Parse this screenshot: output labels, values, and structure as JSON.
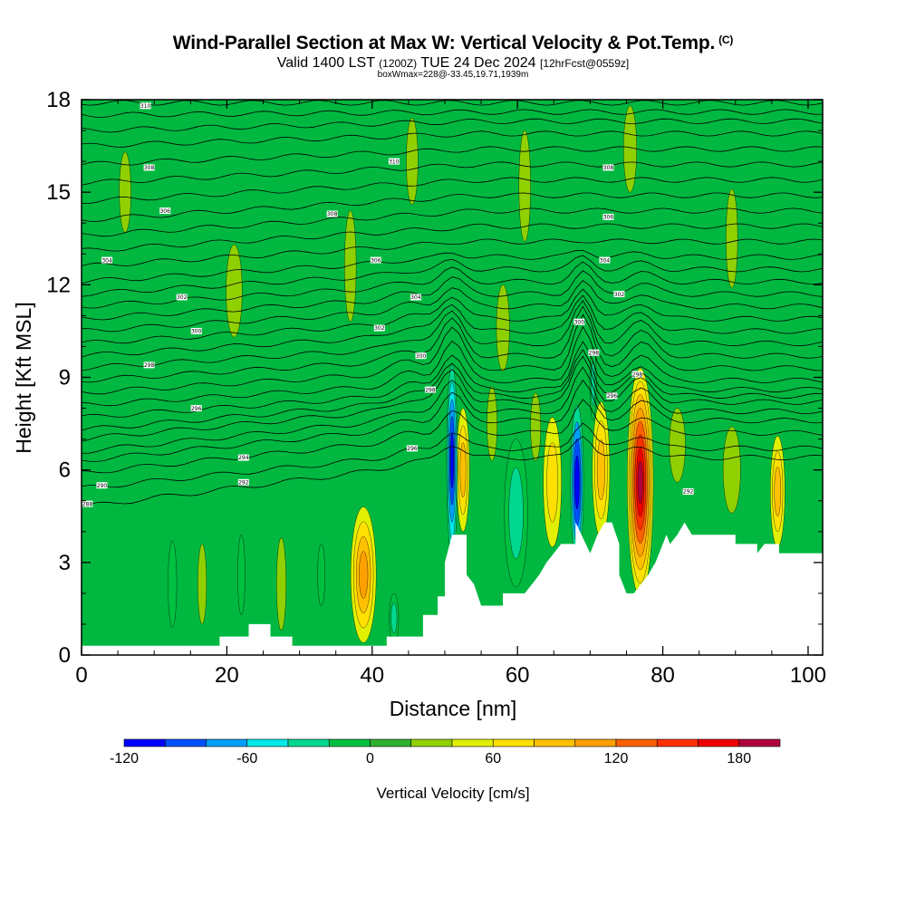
{
  "header": {
    "title": "Wind-Parallel Section at Max W: Vertical Velocity & Pot.Temp.",
    "title_mark": "(C)",
    "subtitle_a": "Valid 1400 LST",
    "subtitle_b": "(1200Z)",
    "subtitle_c": "TUE 24 Dec 2024",
    "subtitle_d": "[12hrFcst@0559z]",
    "box_note": "boxWmax=228@-33.45,19.71,1939m"
  },
  "chart_data": {
    "type": "heatmap",
    "xlabel": "Distance [nm]",
    "ylabel": "Height [Kft MSL]",
    "xlim": [
      0,
      102
    ],
    "ylim": [
      0,
      18
    ],
    "x_ticks": [
      0,
      20,
      40,
      60,
      80,
      100
    ],
    "y_ticks": [
      0,
      3,
      6,
      9,
      12,
      15,
      18
    ],
    "colorbar": {
      "label": "Vertical Velocity [cm/s]",
      "levels": [
        -120,
        -100,
        -80,
        -60,
        -40,
        -20,
        0,
        20,
        40,
        60,
        80,
        100,
        120,
        140,
        160,
        180,
        200
      ],
      "tick_values": [
        -120,
        -60,
        0,
        60,
        120,
        180
      ],
      "tick_labels": [
        "-120",
        "-60",
        "0",
        "60",
        "120",
        "180"
      ],
      "colors": [
        "#0000ff",
        "#0050ff",
        "#00a0ff",
        "#00e8e8",
        "#00d890",
        "#00c040",
        "#30b030",
        "#90d000",
        "#e0f000",
        "#ffe000",
        "#ffc000",
        "#ffa000",
        "#ff6000",
        "#ff3000",
        "#f00000",
        "#b00040"
      ],
      "background": "#00b840"
    },
    "terrain_profile": [
      [
        0,
        0.3
      ],
      [
        19,
        0.3
      ],
      [
        19,
        0.6
      ],
      [
        23,
        0.6
      ],
      [
        23,
        1.0
      ],
      [
        26,
        1.0
      ],
      [
        26,
        0.6
      ],
      [
        29,
        0.6
      ],
      [
        29,
        0.3
      ],
      [
        42,
        0.3
      ],
      [
        42,
        0.6
      ],
      [
        47,
        0.6
      ],
      [
        47,
        1.3
      ],
      [
        49,
        1.3
      ],
      [
        49,
        1.9
      ],
      [
        50,
        1.9
      ],
      [
        50,
        3.0
      ],
      [
        51,
        3.9
      ],
      [
        53,
        3.9
      ],
      [
        53,
        2.6
      ],
      [
        54,
        2.3
      ],
      [
        55,
        1.6
      ],
      [
        58,
        1.6
      ],
      [
        58,
        2.0
      ],
      [
        61,
        2.0
      ],
      [
        62,
        2.3
      ],
      [
        63,
        2.6
      ],
      [
        64,
        3.0
      ],
      [
        65,
        3.3
      ],
      [
        66,
        3.6
      ],
      [
        68,
        3.6
      ],
      [
        68,
        4.3
      ],
      [
        70,
        3.3
      ],
      [
        71,
        3.9
      ],
      [
        72,
        4.3
      ],
      [
        73,
        4.3
      ],
      [
        74,
        3.6
      ],
      [
        74,
        2.6
      ],
      [
        75,
        2.0
      ],
      [
        76,
        2.0
      ],
      [
        77,
        2.3
      ],
      [
        78,
        2.6
      ],
      [
        79,
        3.0
      ],
      [
        80,
        3.6
      ],
      [
        80.5,
        3.9
      ],
      [
        81,
        3.6
      ],
      [
        82,
        3.9
      ],
      [
        83,
        4.3
      ],
      [
        84,
        3.9
      ],
      [
        90,
        3.9
      ],
      [
        90,
        3.6
      ],
      [
        93,
        3.6
      ],
      [
        93,
        3.3
      ],
      [
        94,
        3.6
      ],
      [
        96,
        3.6
      ],
      [
        96,
        3.3
      ],
      [
        102,
        3.3
      ]
    ],
    "velocity_cells": [
      {
        "x": 38.8,
        "y": 2.6,
        "w": 3.5,
        "h": 4.4,
        "v": [
          40,
          60,
          80,
          100
        ]
      },
      {
        "x": 52.5,
        "y": 6.0,
        "w": 1.8,
        "h": 4.0,
        "v": [
          40,
          60,
          80
        ]
      },
      {
        "x": 51.0,
        "y": 6.3,
        "w": 1.5,
        "h": 6.2,
        "v": [
          -40,
          -60,
          -80,
          -100,
          -120
        ]
      },
      {
        "x": 59.8,
        "y": 4.6,
        "w": 3.2,
        "h": 4.8,
        "v": [
          -20,
          -40
        ]
      },
      {
        "x": 64.8,
        "y": 5.6,
        "w": 2.5,
        "h": 4.2,
        "v": [
          40,
          60
        ]
      },
      {
        "x": 68.2,
        "y": 5.6,
        "w": 1.8,
        "h": 5.0,
        "v": [
          -40,
          -80,
          -100,
          -120
        ]
      },
      {
        "x": 71.5,
        "y": 6.0,
        "w": 2.4,
        "h": 4.4,
        "v": [
          40,
          60,
          80
        ]
      },
      {
        "x": 76.9,
        "y": 5.6,
        "w": 3.6,
        "h": 7.4,
        "v": [
          40,
          60,
          80,
          100,
          120,
          140,
          160,
          180
        ]
      },
      {
        "x": 95.8,
        "y": 5.3,
        "w": 2.0,
        "h": 3.6,
        "v": [
          40,
          60,
          80
        ]
      },
      {
        "x": 12.5,
        "y": 2.3,
        "w": 1.2,
        "h": 2.8,
        "v": [
          -20
        ]
      },
      {
        "x": 16.6,
        "y": 2.3,
        "w": 1.2,
        "h": 2.6,
        "v": [
          20
        ]
      },
      {
        "x": 22.0,
        "y": 2.6,
        "w": 1.0,
        "h": 2.6,
        "v": [
          -20
        ]
      },
      {
        "x": 27.5,
        "y": 2.3,
        "w": 1.3,
        "h": 3.0,
        "v": [
          20
        ]
      },
      {
        "x": 33.0,
        "y": 2.6,
        "w": 1.0,
        "h": 2.0,
        "v": [
          -20
        ]
      },
      {
        "x": 43.0,
        "y": 1.2,
        "w": 1.3,
        "h": 1.6,
        "v": [
          -20,
          -40
        ]
      },
      {
        "x": 56.5,
        "y": 7.5,
        "w": 1.4,
        "h": 2.4,
        "v": [
          20
        ]
      },
      {
        "x": 62.5,
        "y": 7.4,
        "w": 1.4,
        "h": 2.2,
        "v": [
          20
        ]
      },
      {
        "x": 82.0,
        "y": 6.8,
        "w": 2.2,
        "h": 2.4,
        "v": [
          20
        ]
      },
      {
        "x": 89.5,
        "y": 6.0,
        "w": 2.4,
        "h": 2.8,
        "v": [
          20
        ]
      },
      {
        "x": 70.4,
        "y": 8.8,
        "w": 0.9,
        "h": 2.4,
        "v": [
          -20,
          -40
        ]
      },
      {
        "x": 21.0,
        "y": 11.8,
        "w": 2.2,
        "h": 3.0,
        "v": [
          20
        ]
      },
      {
        "x": 37.0,
        "y": 12.6,
        "w": 1.6,
        "h": 3.6,
        "v": [
          20
        ]
      },
      {
        "x": 45.5,
        "y": 16.0,
        "w": 1.6,
        "h": 2.8,
        "v": [
          20
        ]
      },
      {
        "x": 61.0,
        "y": 15.2,
        "w": 1.6,
        "h": 3.6,
        "v": [
          20
        ]
      },
      {
        "x": 75.5,
        "y": 16.4,
        "w": 1.8,
        "h": 2.8,
        "v": [
          20
        ]
      },
      {
        "x": 89.5,
        "y": 13.5,
        "w": 1.6,
        "h": 3.2,
        "v": [
          20
        ]
      },
      {
        "x": 6.0,
        "y": 15.0,
        "w": 1.6,
        "h": 2.6,
        "v": [
          20
        ]
      },
      {
        "x": 58.0,
        "y": 10.6,
        "w": 1.8,
        "h": 2.8,
        "v": [
          20
        ]
      }
    ],
    "theta_contours": {
      "levels": [
        287,
        288,
        289,
        290,
        291,
        292,
        293,
        294,
        295,
        296,
        297,
        298,
        299,
        300,
        301,
        302,
        303,
        304,
        305,
        306,
        307,
        308,
        309,
        310,
        311,
        312,
        313,
        314,
        315,
        316
      ],
      "left_heights": [
        4.8,
        5.4,
        5.9,
        6.3,
        6.6,
        7.0,
        7.3,
        7.7,
        8.1,
        8.5,
        8.9,
        9.3,
        9.7,
        10.1,
        10.5,
        10.9,
        11.3,
        11.7,
        12.1,
        12.6,
        13.1,
        13.6,
        14.1,
        14.7,
        15.3,
        15.9,
        16.5,
        17.0,
        17.5,
        17.9
      ],
      "right_heights": [
        6.4,
        6.7,
        7.2,
        7.6,
        7.9,
        8.2,
        8.4,
        8.6,
        8.9,
        9.3,
        9.7,
        10.1,
        10.5,
        10.9,
        11.3,
        11.7,
        12.1,
        12.5,
        12.9,
        13.4,
        13.9,
        14.4,
        14.9,
        15.4,
        15.9,
        16.4,
        16.9,
        17.3,
        17.6,
        17.9
      ]
    },
    "contour_labels": [
      {
        "x": 0.8,
        "y": 4.9,
        "t": "288"
      },
      {
        "x": 2.8,
        "y": 5.5,
        "t": "290"
      },
      {
        "x": 22.3,
        "y": 5.6,
        "t": "292"
      },
      {
        "x": 22.3,
        "y": 6.4,
        "t": "294"
      },
      {
        "x": 15.8,
        "y": 8.0,
        "t": "296"
      },
      {
        "x": 9.3,
        "y": 9.4,
        "t": "298"
      },
      {
        "x": 15.8,
        "y": 10.5,
        "t": "300"
      },
      {
        "x": 13.8,
        "y": 11.6,
        "t": "302"
      },
      {
        "x": 3.5,
        "y": 12.8,
        "t": "304"
      },
      {
        "x": 11.5,
        "y": 14.4,
        "t": "306"
      },
      {
        "x": 9.3,
        "y": 15.8,
        "t": "308"
      },
      {
        "x": 8.8,
        "y": 17.8,
        "t": "310"
      },
      {
        "x": 45.5,
        "y": 6.7,
        "t": "296"
      },
      {
        "x": 48.0,
        "y": 8.6,
        "t": "298"
      },
      {
        "x": 46.7,
        "y": 9.7,
        "t": "300"
      },
      {
        "x": 41.0,
        "y": 10.6,
        "t": "302"
      },
      {
        "x": 46.0,
        "y": 11.6,
        "t": "304"
      },
      {
        "x": 40.5,
        "y": 12.8,
        "t": "306"
      },
      {
        "x": 34.5,
        "y": 14.3,
        "t": "308"
      },
      {
        "x": 43.0,
        "y": 16.0,
        "t": "310"
      },
      {
        "x": 68.5,
        "y": 10.8,
        "t": "300"
      },
      {
        "x": 70.5,
        "y": 9.8,
        "t": "298"
      },
      {
        "x": 73.0,
        "y": 8.4,
        "t": "296"
      },
      {
        "x": 76.5,
        "y": 9.1,
        "t": "298"
      },
      {
        "x": 72.0,
        "y": 12.8,
        "t": "304"
      },
      {
        "x": 74.0,
        "y": 11.7,
        "t": "302"
      },
      {
        "x": 72.5,
        "y": 14.2,
        "t": "306"
      },
      {
        "x": 72.5,
        "y": 15.8,
        "t": "308"
      },
      {
        "x": 83.5,
        "y": 5.3,
        "t": "292"
      }
    ]
  }
}
